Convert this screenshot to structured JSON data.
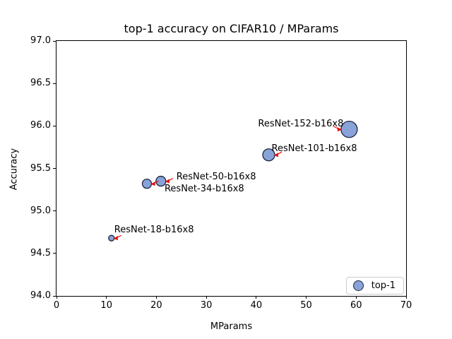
{
  "chart_data": {
    "type": "scatter",
    "title": "top-1 accuracy on CIFAR10 / MParams",
    "xlabel": "MParams",
    "ylabel": "Accuracy",
    "xlim": [
      0,
      70
    ],
    "ylim": [
      94.0,
      97.0
    ],
    "x_ticks": [
      "0",
      "10",
      "20",
      "30",
      "40",
      "50",
      "60",
      "70"
    ],
    "y_ticks": [
      "94.0",
      "94.5",
      "95.0",
      "95.5",
      "96.0",
      "96.5",
      "97.0"
    ],
    "grid": false,
    "legend": {
      "position": "lower-right",
      "entries": [
        "top-1"
      ]
    },
    "series": [
      {
        "name": "top-1",
        "marker": "circle",
        "points": [
          {
            "label": "ResNet-18-b16x8",
            "mparams": 11.0,
            "accuracy": 94.68,
            "marker_radius": 4,
            "annotation": {
              "anchor": "left",
              "dx": 4,
              "dy": -11,
              "arrow": "right"
            }
          },
          {
            "label": "ResNet-34-b16x8",
            "mparams": 18.1,
            "accuracy": 95.32,
            "marker_radius": 6.5,
            "annotation": {
              "anchor": "left",
              "dx": 25,
              "dy": 8,
              "arrow": "right"
            }
          },
          {
            "label": "ResNet-50-b16x8",
            "mparams": 20.9,
            "accuracy": 95.35,
            "marker_radius": 7,
            "annotation": {
              "anchor": "left",
              "dx": 22,
              "dy": -6,
              "arrow": "right"
            }
          },
          {
            "label": "ResNet-101-b16x8",
            "mparams": 42.5,
            "accuracy": 95.66,
            "marker_radius": 8.5,
            "annotation": {
              "anchor": "left",
              "dx": 4,
              "dy": -8,
              "arrow": "right"
            }
          },
          {
            "label": "ResNet-152-b16x8",
            "mparams": 58.6,
            "accuracy": 95.96,
            "marker_radius": 11.5,
            "annotation": {
              "anchor": "right",
              "dx": -8,
              "dy": -7,
              "arrow": "left"
            }
          }
        ]
      }
    ],
    "colors": {
      "marker_fill": "#89a3d9",
      "marker_edge": "#1c2540",
      "annotation_arrow": "#ee0000",
      "axis": "#000000",
      "legend_border": "#cccccc",
      "background": "#ffffff"
    }
  }
}
